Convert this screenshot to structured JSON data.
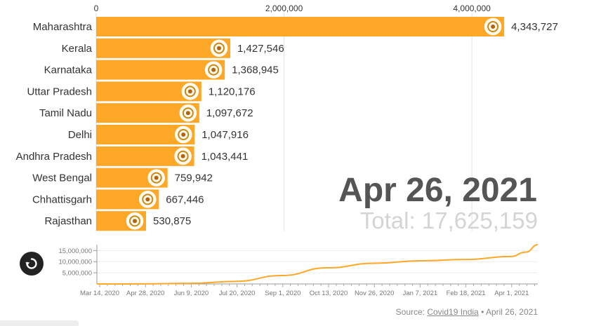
{
  "chart_data": [
    {
      "type": "bar",
      "categories": [
        "Maharashtra",
        "Kerala",
        "Karnataka",
        "Uttar Pradesh",
        "Tamil Nadu",
        "Delhi",
        "Andhra Pradesh",
        "West Bengal",
        "Chhattisgarh",
        "Rajasthan"
      ],
      "values": [
        4343727,
        1427546,
        1368945,
        1120176,
        1097672,
        1047916,
        1043441,
        759942,
        667446,
        530875
      ],
      "value_labels": [
        "4,343,727",
        "1,427,546",
        "1,368,945",
        "1,120,176",
        "1,097,672",
        "1,047,916",
        "1,043,441",
        "759,942",
        "667,446",
        "530,875"
      ],
      "x_ticks": [
        0,
        2000000,
        4000000
      ],
      "x_tick_labels": [
        "0",
        "2,000,000",
        "4,000,000"
      ],
      "xlim": [
        0,
        4500000
      ],
      "grid": true,
      "bar_color": "#ffa726",
      "icon_names": [
        "maharashtra-emblem-icon",
        "kerala-emblem-icon",
        "karnataka-emblem-icon",
        "uttar-pradesh-emblem-icon",
        "tamil-nadu-emblem-icon",
        "delhi-emblem-icon",
        "andhra-pradesh-emblem-icon",
        "west-bengal-emblem-icon",
        "chhattisgarh-emblem-icon",
        "rajasthan-emblem-icon"
      ]
    },
    {
      "type": "line",
      "x_tick_labels": [
        "Mar 14, 2020",
        "Apr 28, 2020",
        "Jun 9, 2020",
        "Jul 20, 2020",
        "Sep 1, 2020",
        "Oct 13, 2020",
        "Nov 26, 2020",
        "Jan 7, 2021",
        "Feb 18, 2021",
        "Apr 1, 2021"
      ],
      "y_ticks": [
        5000000,
        10000000,
        15000000
      ],
      "y_tick_labels": [
        "5,000,000",
        "10,000,000",
        "15,000,000"
      ],
      "ylim": [
        0,
        17625159
      ],
      "x": [
        "2020-03-14",
        "2020-04-28",
        "2020-06-09",
        "2020-07-20",
        "2020-09-01",
        "2020-10-13",
        "2020-11-26",
        "2021-01-07",
        "2021-02-18",
        "2021-04-01",
        "2021-04-15",
        "2021-04-26"
      ],
      "values": [
        100,
        30000,
        270000,
        1150000,
        3770000,
        7240000,
        9270000,
        10390000,
        10960000,
        12300000,
        14290000,
        17625159
      ],
      "line_color": "#ffa726"
    }
  ],
  "current_date": "Apr 26, 2021",
  "total_label": "Total: 17,625,159",
  "source": {
    "prefix": "Source: ",
    "link_text": "Covid19 India",
    "suffix": " • April 26, 2021"
  },
  "replay_icon": "replay-icon"
}
